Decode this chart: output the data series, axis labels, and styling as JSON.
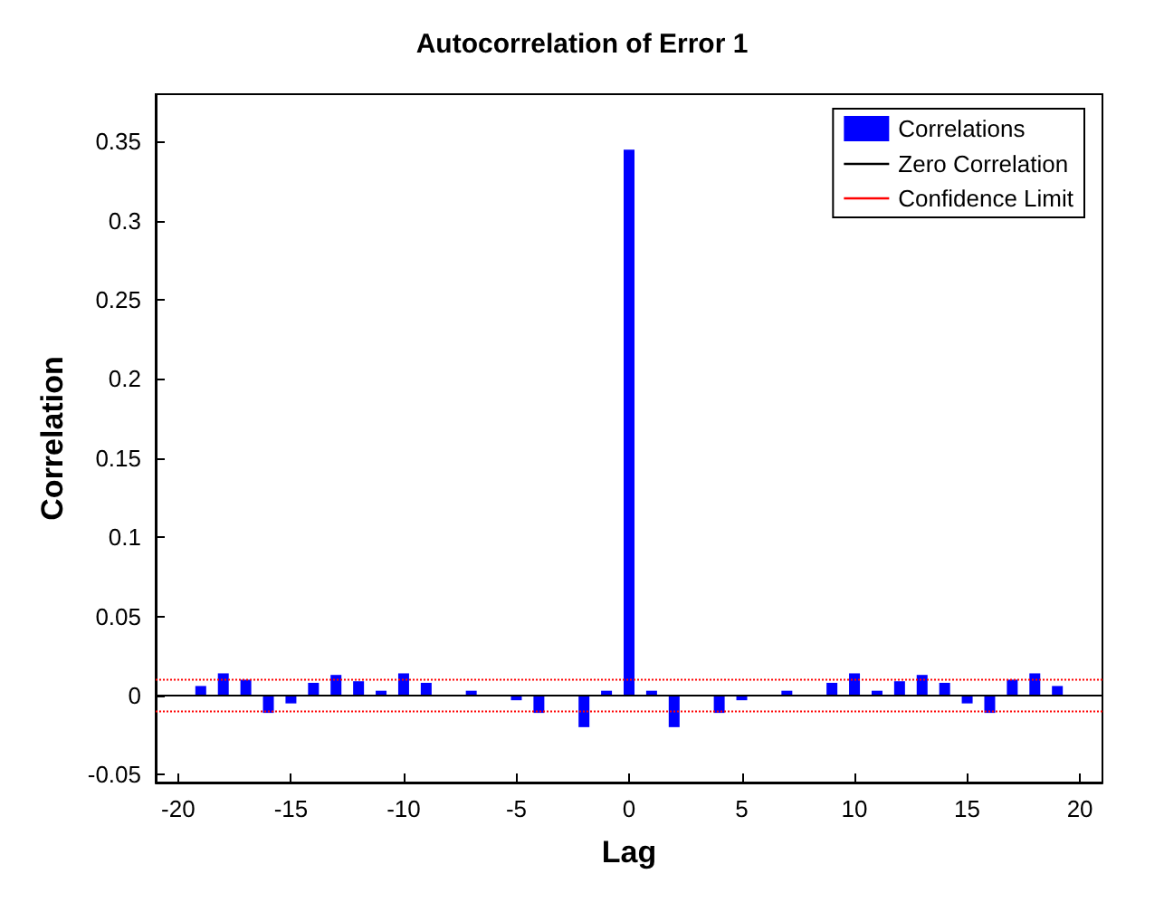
{
  "chart_data": {
    "type": "bar",
    "title": "Autocorrelation of Error 1",
    "xlabel": "Lag",
    "ylabel": "Correlation",
    "xlim": [
      -21,
      21
    ],
    "xticks": [
      -20,
      -15,
      -10,
      -5,
      0,
      5,
      10,
      15,
      20
    ],
    "ylim": [
      -0.055,
      0.38
    ],
    "yticks": [
      -0.05,
      0,
      0.05,
      0.1,
      0.15,
      0.2,
      0.25,
      0.3,
      0.35
    ],
    "grid": false,
    "legend": "top right",
    "series": [
      {
        "name": "Correlations",
        "color": "#0000ff",
        "x": [
          -19,
          -18,
          -17,
          -16,
          -15,
          -14,
          -13,
          -12,
          -11,
          -10,
          -9,
          -8,
          -7,
          -6,
          -5,
          -4,
          -3,
          -2,
          -1,
          0,
          1,
          2,
          3,
          4,
          5,
          6,
          7,
          8,
          9,
          10,
          11,
          12,
          13,
          14,
          15,
          16,
          17,
          18,
          19
        ],
        "values": [
          0.006,
          0.014,
          0.01,
          -0.011,
          -0.005,
          0.008,
          0.013,
          0.009,
          0.003,
          0.014,
          0.008,
          0,
          0.003,
          0,
          -0.003,
          -0.011,
          0,
          -0.02,
          0.003,
          0.345,
          0.003,
          -0.02,
          0,
          -0.011,
          -0.003,
          0,
          0.003,
          0,
          0.008,
          0.014,
          0.003,
          0.009,
          0.013,
          0.008,
          -0.005,
          -0.011,
          0.01,
          0.014,
          0.006
        ]
      },
      {
        "name": "Zero Correlation",
        "type": "line",
        "color": "#000000",
        "line_style": "solid",
        "x": [
          -21,
          21
        ],
        "values": [
          0,
          0
        ]
      },
      {
        "name": "Confidence Limit",
        "type": "line",
        "color": "#ff0000",
        "line_style": "dotted",
        "x": [
          -21,
          21
        ],
        "values": [
          0.01,
          0.01
        ]
      },
      {
        "type": "line",
        "color": "#ff0000",
        "line_style": "dotted",
        "x": [
          -21,
          21
        ],
        "values": [
          -0.01,
          -0.01
        ]
      }
    ]
  }
}
